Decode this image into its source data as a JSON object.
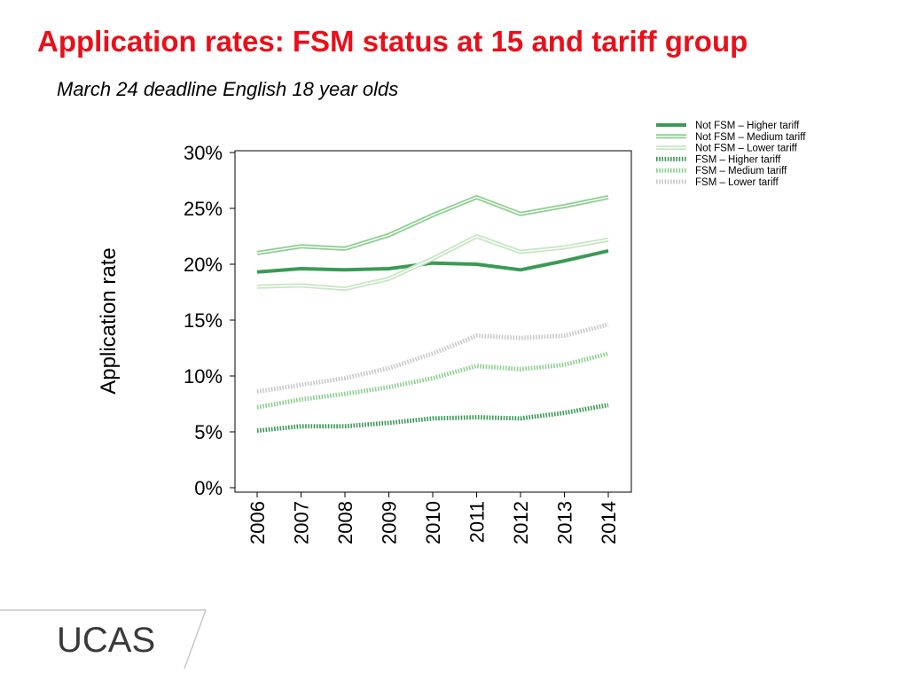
{
  "slide": {
    "title": "Application rates: FSM status at 15 and tariff group",
    "subtitle": "March 24 deadline English 18 year olds"
  },
  "logo": {
    "text": "UCAS",
    "color": "#3a3a3a"
  },
  "chart_data": {
    "type": "line",
    "ylabel": "Application rate",
    "xlabel": "",
    "ylim": [
      0,
      30
    ],
    "yticks": [
      "0%",
      "5%",
      "10%",
      "15%",
      "20%",
      "25%",
      "30%"
    ],
    "ytick_values": [
      0,
      5,
      10,
      15,
      20,
      25,
      30
    ],
    "categories": [
      "2006",
      "2007",
      "2008",
      "2009",
      "2010",
      "2011",
      "2012",
      "2013",
      "2014"
    ],
    "legend_position": "top-right",
    "grid": false,
    "series": [
      {
        "name": "Not FSM – Higher tariff",
        "style": "solid",
        "color": "#3a9a55",
        "values": [
          19.3,
          19.6,
          19.5,
          19.6,
          20.1,
          20.0,
          19.5,
          20.3,
          21.2
        ]
      },
      {
        "name": "Not FSM – Medium tariff",
        "style": "double",
        "color": "#8fcf93",
        "values": [
          21.0,
          21.6,
          21.4,
          22.6,
          24.4,
          26.0,
          24.5,
          25.2,
          26.0
        ]
      },
      {
        "name": "Not FSM – Lower tariff",
        "style": "double",
        "color": "#c8e6c4",
        "values": [
          18.0,
          18.1,
          17.8,
          18.7,
          20.5,
          22.5,
          21.1,
          21.5,
          22.2
        ]
      },
      {
        "name": "FSM – Higher tariff",
        "style": "dotted",
        "color": "#3a9a55",
        "values": [
          5.1,
          5.5,
          5.5,
          5.8,
          6.2,
          6.3,
          6.2,
          6.7,
          7.4
        ]
      },
      {
        "name": "FSM – Medium tariff",
        "style": "dotted",
        "color": "#8fcf93",
        "values": [
          7.2,
          7.9,
          8.4,
          9.0,
          9.8,
          10.9,
          10.6,
          11.0,
          12.0
        ]
      },
      {
        "name": "FSM – Lower tariff",
        "style": "dotted",
        "color": "#c9c9c9",
        "values": [
          8.6,
          9.2,
          9.8,
          10.7,
          12.0,
          13.6,
          13.4,
          13.6,
          14.6
        ]
      }
    ]
  }
}
